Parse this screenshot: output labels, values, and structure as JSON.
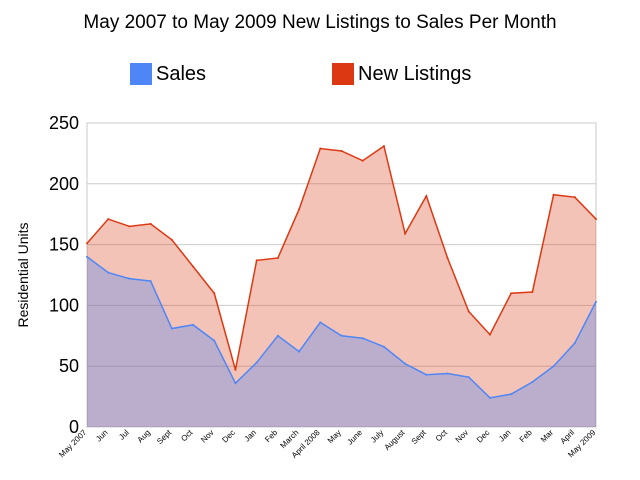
{
  "chart_data": {
    "type": "area",
    "title": "May 2007 to May 2009 New Listings to Sales Per Month",
    "xlabel": "",
    "ylabel": "Residential Units",
    "ylim": [
      0,
      250
    ],
    "yticks": [
      0,
      50,
      100,
      150,
      200,
      250
    ],
    "grid": true,
    "legend_position": "top",
    "categories": [
      "May 2007",
      "Jun",
      "Jul",
      "Aug",
      "Sept",
      "Oct",
      "Nov",
      "Dec",
      "Jan",
      "Feb",
      "March",
      "April 2008",
      "May",
      "June",
      "July",
      "August",
      "Sept",
      "Oct",
      "Nov",
      "Dec",
      "Jan",
      "Feb",
      "Mar",
      "April",
      "May 2009"
    ],
    "series": [
      {
        "name": "Sales",
        "color": "#4f86f7",
        "values": [
          140,
          127,
          122,
          120,
          81,
          84,
          71,
          36,
          53,
          75,
          62,
          86,
          75,
          73,
          66,
          52,
          43,
          44,
          41,
          24,
          27,
          37,
          50,
          69,
          103
        ]
      },
      {
        "name": "New Listings",
        "color": "#dc3912",
        "values": [
          151,
          171,
          165,
          167,
          154,
          132,
          110,
          47,
          137,
          139,
          179,
          229,
          227,
          219,
          231,
          159,
          190,
          139,
          95,
          76,
          110,
          111,
          191,
          189,
          171
        ]
      }
    ]
  }
}
